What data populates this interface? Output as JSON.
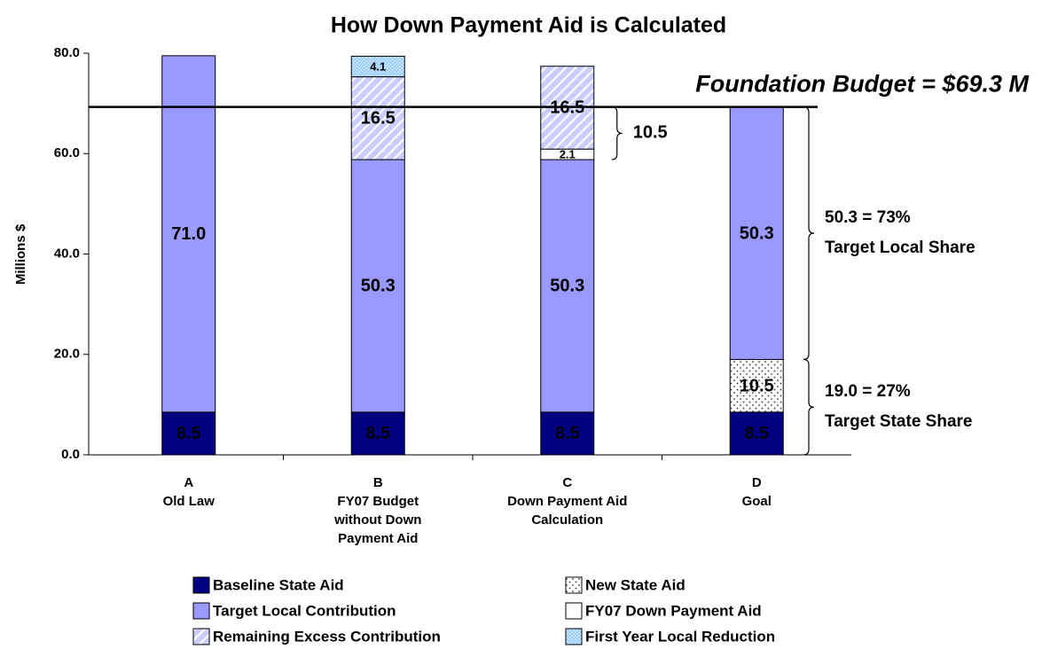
{
  "chart_data": {
    "type": "stacked_bar",
    "title": "How Down Payment Aid is Calculated",
    "ylabel": "Millions $",
    "categories": [
      [
        "A",
        "Old Law"
      ],
      [
        "B",
        "FY07 Budget",
        "without Down",
        "Payment Aid"
      ],
      [
        "C",
        "Down Payment Aid",
        "Calculation"
      ],
      [
        "D",
        "Goal"
      ]
    ],
    "series": [
      {
        "name": "Baseline State Aid",
        "color": "#000080",
        "label_color": "#ffffff",
        "values": [
          8.5,
          8.5,
          8.5,
          8.5
        ]
      },
      {
        "name": "New State Aid",
        "color": "#ffffff",
        "pattern": "dots",
        "values": [
          null,
          null,
          null,
          10.5
        ]
      },
      {
        "name": "Target Local Contribution",
        "color": "#9999ff",
        "values": [
          71.0,
          50.3,
          50.3,
          50.3
        ],
        "value_labels": [
          "71.0",
          "50.3",
          "50.3",
          "50.3"
        ]
      },
      {
        "name": "FY07 Down Payment Aid",
        "color": "#ffffff",
        "values": [
          null,
          null,
          2.1,
          null
        ]
      },
      {
        "name": "Remaining Excess Contribution",
        "color": "#ccccff",
        "pattern": "hatch",
        "values": [
          null,
          16.5,
          16.5,
          null
        ]
      },
      {
        "name": "First Year Local Reduction",
        "color": "#99ccff",
        "pattern": "dots",
        "values": [
          null,
          4.1,
          null,
          null
        ]
      }
    ],
    "ylim": [
      0,
      80
    ],
    "yticks": [
      {
        "value": 0,
        "label": "0.0"
      },
      {
        "value": 20,
        "label": "20.0"
      },
      {
        "value": 40,
        "label": "40.0"
      },
      {
        "value": 60,
        "label": "60.0"
      },
      {
        "value": 80,
        "label": "80.0"
      }
    ],
    "grid": false,
    "reference_line": {
      "value": 69.3,
      "label": "Foundation Budget = $69.3 M"
    },
    "braces": [
      {
        "range": [
          58.8,
          69.3
        ],
        "label": [
          "10.5"
        ]
      },
      {
        "range": [
          19.0,
          69.3
        ],
        "label": [
          "50.3 = 73%",
          "Target Local Share"
        ]
      },
      {
        "range": [
          0,
          19.0
        ],
        "label": [
          "19.0 = 27%",
          "Target State Share"
        ]
      }
    ]
  }
}
